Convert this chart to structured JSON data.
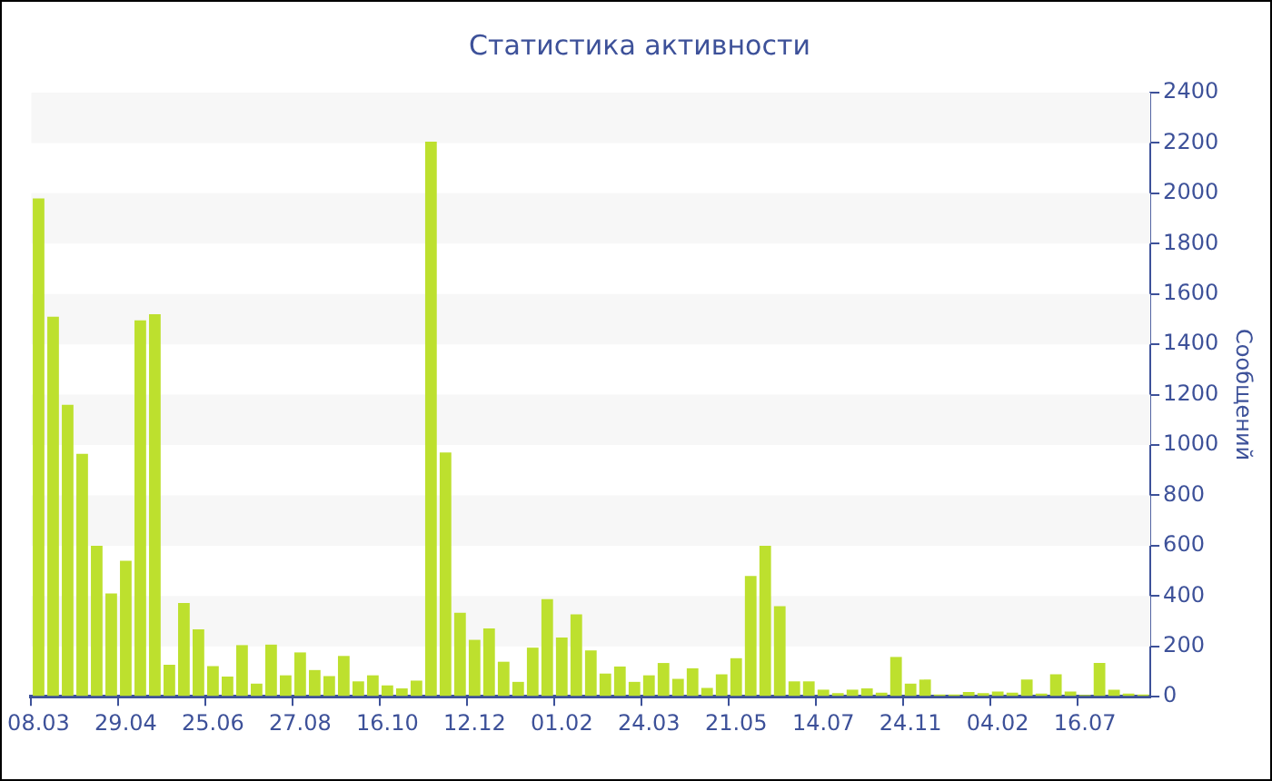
{
  "chart_data": {
    "type": "bar",
    "title": "Статистика активности",
    "ylabel": "Сообщений",
    "categories": [
      "08.03",
      null,
      null,
      null,
      null,
      null,
      "29.04",
      null,
      null,
      null,
      null,
      null,
      "25.06",
      null,
      null,
      null,
      null,
      null,
      "27.08",
      null,
      null,
      null,
      null,
      null,
      "16.10",
      null,
      null,
      null,
      null,
      null,
      "12.12",
      null,
      null,
      null,
      null,
      null,
      "01.02",
      null,
      null,
      null,
      null,
      null,
      "24.03",
      null,
      null,
      null,
      null,
      null,
      "21.05",
      null,
      null,
      null,
      null,
      null,
      "14.07",
      null,
      null,
      null,
      null,
      null,
      "24.11",
      null,
      null,
      null,
      null,
      null,
      "04.02",
      null,
      null,
      null,
      null,
      null,
      "16.07",
      null,
      null,
      null,
      null
    ],
    "values": [
      1980,
      1510,
      1160,
      965,
      600,
      410,
      540,
      1495,
      1520,
      127,
      372,
      268,
      122,
      80,
      205,
      52,
      207,
      85,
      176,
      106,
      82,
      162,
      61,
      85,
      45,
      33,
      64,
      2205,
      970,
      334,
      226,
      271,
      139,
      59,
      195,
      388,
      235,
      327,
      184,
      92,
      120,
      59,
      85,
      134,
      71,
      113,
      35,
      89,
      153,
      480,
      600,
      360,
      61,
      61,
      28,
      14,
      28,
      33,
      16,
      158,
      52,
      68,
      9,
      9,
      19,
      14,
      21,
      16,
      68,
      12,
      89,
      21,
      7,
      134,
      28,
      12,
      9
    ],
    "color": "#bde02e",
    "ylim": [
      0,
      2400
    ],
    "yticks": [
      0,
      200,
      400,
      600,
      800,
      1000,
      1200,
      1400,
      1600,
      1800,
      2000,
      2200,
      2400
    ],
    "bands": [
      {
        "axis": "y",
        "from": 200,
        "to": 400,
        "color": "#f7f7f7"
      },
      {
        "axis": "y",
        "from": 600,
        "to": 800,
        "color": "#f7f7f7"
      },
      {
        "axis": "y",
        "from": 1000,
        "to": 1200,
        "color": "#f7f7f7"
      },
      {
        "axis": "y",
        "from": 1400,
        "to": 1600,
        "color": "#f7f7f7"
      },
      {
        "axis": "y",
        "from": 1800,
        "to": 2000,
        "color": "#f7f7f7"
      },
      {
        "axis": "y",
        "from": 2200,
        "to": 2400,
        "color": "#f7f7f7"
      }
    ]
  }
}
